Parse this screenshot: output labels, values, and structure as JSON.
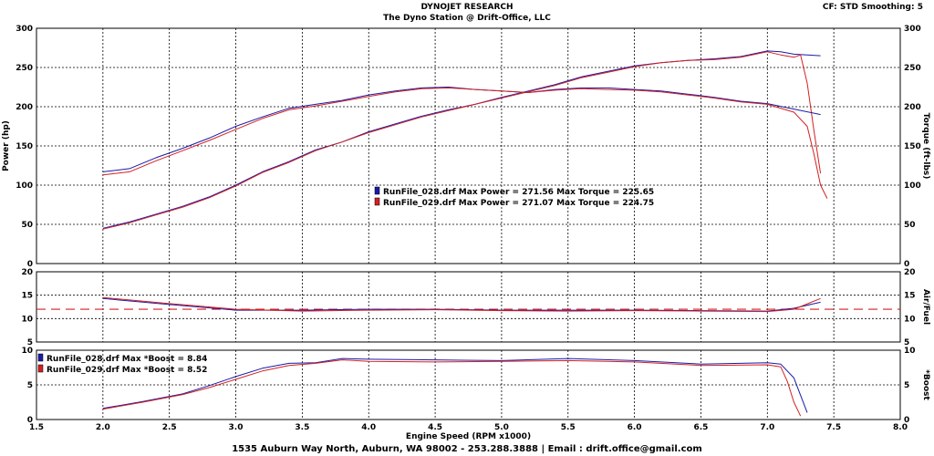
{
  "header": {
    "title": "DYNOJET RESEARCH",
    "subtitle": "The Dyno Station @ Drift-Office, LLC",
    "settings": "CF: STD   Smoothing: 5"
  },
  "footer": "1535 Auburn Way North, Auburn, WA 98002 - 253.288.3888 | Email : drift.office@gmail.com",
  "colors": {
    "run028": "#1a1aa8",
    "run029": "#d42020",
    "afr_target": "#d42020",
    "grid": "#000000"
  },
  "chart_data": [
    {
      "id": "power_torque",
      "type": "line",
      "ylabel": "Power (hp)",
      "y2label": "Torque (ft-lbs)",
      "xlim": [
        1.5,
        8.0
      ],
      "ylim": [
        0,
        300
      ],
      "y2lim": [
        0,
        300
      ],
      "yticks": [
        0,
        50,
        100,
        150,
        200,
        250,
        300
      ],
      "legend": [
        {
          "text": "RunFile_028.drf Max Power = 271.56      Max Torque = 225.65",
          "series": "run028"
        },
        {
          "text": "RunFile_029.drf Max Power = 271.07      Max Torque = 224.75",
          "series": "run029"
        }
      ],
      "series": [
        {
          "run": "run028",
          "kind": "power",
          "points": [
            [
              2.0,
              45
            ],
            [
              2.2,
              53
            ],
            [
              2.4,
              63
            ],
            [
              2.6,
              73
            ],
            [
              2.8,
              85
            ],
            [
              3.0,
              100
            ],
            [
              3.2,
              117
            ],
            [
              3.4,
              130
            ],
            [
              3.6,
              145
            ],
            [
              3.8,
              155
            ],
            [
              4.0,
              168
            ],
            [
              4.2,
              178
            ],
            [
              4.4,
              188
            ],
            [
              4.6,
              196
            ],
            [
              4.8,
              203
            ],
            [
              5.0,
              212
            ],
            [
              5.2,
              220
            ],
            [
              5.4,
              228
            ],
            [
              5.6,
              238
            ],
            [
              5.8,
              245
            ],
            [
              6.0,
              252
            ],
            [
              6.2,
              256
            ],
            [
              6.4,
              259
            ],
            [
              6.6,
              261
            ],
            [
              6.8,
              264
            ],
            [
              7.0,
              271
            ],
            [
              7.1,
              270
            ],
            [
              7.2,
              267
            ],
            [
              7.3,
              266
            ],
            [
              7.4,
              265
            ]
          ]
        },
        {
          "run": "run029",
          "kind": "power",
          "points": [
            [
              2.0,
              44
            ],
            [
              2.2,
              52
            ],
            [
              2.4,
              62
            ],
            [
              2.6,
              72
            ],
            [
              2.8,
              84
            ],
            [
              3.0,
              99
            ],
            [
              3.2,
              116
            ],
            [
              3.4,
              129
            ],
            [
              3.6,
              144
            ],
            [
              3.8,
              155
            ],
            [
              4.0,
              167
            ],
            [
              4.2,
              177
            ],
            [
              4.4,
              187
            ],
            [
              4.6,
              195
            ],
            [
              4.8,
              203
            ],
            [
              5.0,
              211
            ],
            [
              5.2,
              219
            ],
            [
              5.4,
              227
            ],
            [
              5.6,
              237
            ],
            [
              5.8,
              244
            ],
            [
              6.0,
              251
            ],
            [
              6.2,
              256
            ],
            [
              6.4,
              259
            ],
            [
              6.6,
              260
            ],
            [
              6.8,
              263
            ],
            [
              7.0,
              270
            ],
            [
              7.1,
              266
            ],
            [
              7.2,
              263
            ],
            [
              7.25,
              266
            ],
            [
              7.3,
              230
            ],
            [
              7.35,
              170
            ],
            [
              7.4,
              115
            ]
          ]
        },
        {
          "run": "run028",
          "kind": "torque",
          "points": [
            [
              2.0,
              117
            ],
            [
              2.2,
              121
            ],
            [
              2.4,
              135
            ],
            [
              2.6,
              147
            ],
            [
              2.8,
              160
            ],
            [
              3.0,
              175
            ],
            [
              3.2,
              187
            ],
            [
              3.4,
              198
            ],
            [
              3.6,
              203
            ],
            [
              3.8,
              208
            ],
            [
              4.0,
              215
            ],
            [
              4.2,
              220
            ],
            [
              4.4,
              224
            ],
            [
              4.6,
              225
            ],
            [
              4.8,
              222
            ],
            [
              5.0,
              220
            ],
            [
              5.2,
              218
            ],
            [
              5.4,
              222
            ],
            [
              5.6,
              224
            ],
            [
              5.8,
              224
            ],
            [
              6.0,
              222
            ],
            [
              6.2,
              220
            ],
            [
              6.4,
              216
            ],
            [
              6.6,
              212
            ],
            [
              6.8,
              207
            ],
            [
              7.0,
              204
            ],
            [
              7.2,
              197
            ],
            [
              7.4,
              190
            ]
          ]
        },
        {
          "run": "run029",
          "kind": "torque",
          "points": [
            [
              2.0,
              113
            ],
            [
              2.2,
              117
            ],
            [
              2.4,
              131
            ],
            [
              2.6,
              144
            ],
            [
              2.8,
              157
            ],
            [
              3.0,
              171
            ],
            [
              3.2,
              185
            ],
            [
              3.4,
              196
            ],
            [
              3.6,
              201
            ],
            [
              3.8,
              207
            ],
            [
              4.0,
              213
            ],
            [
              4.2,
              219
            ],
            [
              4.4,
              223
            ],
            [
              4.6,
              224
            ],
            [
              4.8,
              222
            ],
            [
              5.0,
              220
            ],
            [
              5.2,
              218
            ],
            [
              5.4,
              221
            ],
            [
              5.6,
              223
            ],
            [
              5.8,
              222
            ],
            [
              6.0,
              221
            ],
            [
              6.2,
              219
            ],
            [
              6.4,
              215
            ],
            [
              6.6,
              211
            ],
            [
              6.8,
              206
            ],
            [
              7.0,
              203
            ],
            [
              7.2,
              193
            ],
            [
              7.3,
              175
            ],
            [
              7.35,
              140
            ],
            [
              7.4,
              100
            ],
            [
              7.45,
              83
            ]
          ]
        }
      ]
    },
    {
      "id": "air_fuel",
      "type": "line",
      "y2label": "Air/Fuel",
      "xlim": [
        1.5,
        8.0
      ],
      "ylim": [
        5,
        20
      ],
      "yticks": [
        5,
        10,
        15,
        20
      ],
      "target": 12,
      "series": [
        {
          "run": "run028",
          "points": [
            [
              2.0,
              14.3
            ],
            [
              2.5,
              13.0
            ],
            [
              3.0,
              11.8
            ],
            [
              3.5,
              11.8
            ],
            [
              4.0,
              12.0
            ],
            [
              4.5,
              12.0
            ],
            [
              5.0,
              11.8
            ],
            [
              5.5,
              11.8
            ],
            [
              6.0,
              11.8
            ],
            [
              6.5,
              11.7
            ],
            [
              7.0,
              11.6
            ],
            [
              7.2,
              12.2
            ],
            [
              7.4,
              13.5
            ]
          ]
        },
        {
          "run": "run029",
          "points": [
            [
              2.0,
              14.5
            ],
            [
              2.5,
              13.2
            ],
            [
              3.0,
              12.0
            ],
            [
              3.5,
              11.6
            ],
            [
              4.0,
              11.8
            ],
            [
              4.5,
              11.9
            ],
            [
              5.0,
              11.7
            ],
            [
              5.5,
              11.6
            ],
            [
              6.0,
              11.7
            ],
            [
              6.5,
              11.6
            ],
            [
              7.0,
              11.5
            ],
            [
              7.2,
              12.0
            ],
            [
              7.4,
              14.3
            ]
          ]
        }
      ]
    },
    {
      "id": "boost",
      "type": "line",
      "xlabel": "Engine Speed (RPM x1000)",
      "y2label": "*Boost",
      "xlim": [
        1.5,
        8.0
      ],
      "ylim": [
        0,
        10
      ],
      "yticks": [
        0,
        5,
        10
      ],
      "xticks": [
        1.5,
        2.0,
        2.5,
        3.0,
        3.5,
        4.0,
        4.5,
        5.0,
        5.5,
        6.0,
        6.5,
        7.0,
        7.5,
        8.0
      ],
      "legend": [
        {
          "text": "RunFile_028.drf Max *Boost = 8.84",
          "series": "run028"
        },
        {
          "text": "RunFile_029.drf Max *Boost = 8.52",
          "series": "run029"
        }
      ],
      "series": [
        {
          "run": "run028",
          "points": [
            [
              2.0,
              1.6
            ],
            [
              2.3,
              2.6
            ],
            [
              2.6,
              3.7
            ],
            [
              2.8,
              4.9
            ],
            [
              3.0,
              6.2
            ],
            [
              3.2,
              7.4
            ],
            [
              3.4,
              8.1
            ],
            [
              3.6,
              8.2
            ],
            [
              3.8,
              8.8
            ],
            [
              4.0,
              8.7
            ],
            [
              4.5,
              8.6
            ],
            [
              5.0,
              8.5
            ],
            [
              5.5,
              8.8
            ],
            [
              6.0,
              8.5
            ],
            [
              6.5,
              8.0
            ],
            [
              7.0,
              8.2
            ],
            [
              7.1,
              8.0
            ],
            [
              7.2,
              6.0
            ],
            [
              7.25,
              3.5
            ],
            [
              7.3,
              1.0
            ]
          ]
        },
        {
          "run": "run029",
          "points": [
            [
              2.0,
              1.5
            ],
            [
              2.3,
              2.5
            ],
            [
              2.6,
              3.6
            ],
            [
              2.8,
              4.6
            ],
            [
              3.0,
              5.8
            ],
            [
              3.2,
              7.0
            ],
            [
              3.4,
              7.8
            ],
            [
              3.6,
              8.1
            ],
            [
              3.8,
              8.6
            ],
            [
              4.0,
              8.4
            ],
            [
              4.5,
              8.3
            ],
            [
              5.0,
              8.4
            ],
            [
              5.5,
              8.5
            ],
            [
              6.0,
              8.3
            ],
            [
              6.5,
              7.8
            ],
            [
              7.0,
              7.9
            ],
            [
              7.1,
              7.6
            ],
            [
              7.15,
              5.5
            ],
            [
              7.2,
              2.5
            ],
            [
              7.25,
              0.5
            ]
          ]
        }
      ]
    }
  ]
}
